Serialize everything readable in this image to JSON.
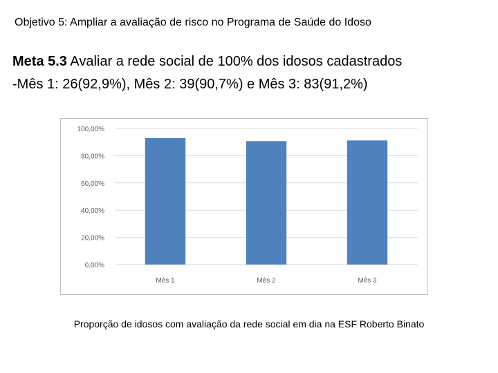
{
  "slide": {
    "header": "Objetivo 5: Ampliar a avaliação de risco no Programa de Saúde do Idoso",
    "meta_label": "Meta 5.3",
    "meta_text": " Avaliar a rede social de 100% dos idosos cadastrados",
    "meta_detail": "-Mês 1: 26(92,9%), Mês 2: 39(90,7%) e Mês 3: 83(91,2%)",
    "caption": "Proporção de idosos com avaliação da rede social em dia na ESF Roberto Binato"
  },
  "chart_data": {
    "type": "bar",
    "categories": [
      "Mês 1",
      "Mês 2",
      "Mês 3"
    ],
    "values": [
      92.9,
      90.7,
      91.2
    ],
    "yticks": [
      0,
      20,
      40,
      60,
      80,
      100
    ],
    "ytick_labels": [
      "0,00%",
      "20,00%",
      "40,00%",
      "60,00%",
      "80,00%",
      "100,00%"
    ],
    "ylim": [
      0,
      100
    ],
    "grid": true,
    "legend": "none",
    "bar_color": "#4f81bd",
    "grid_color": "#d9d9d9",
    "title": "",
    "xlabel": "",
    "ylabel": ""
  }
}
